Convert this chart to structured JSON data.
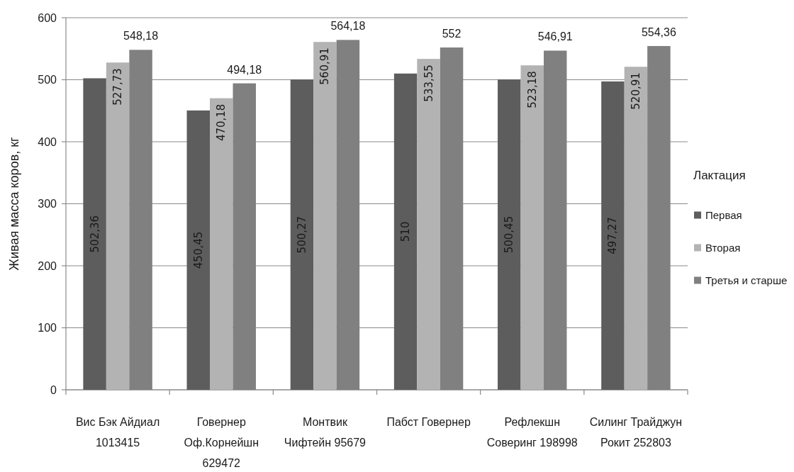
{
  "chart_data": {
    "type": "bar",
    "ylabel": "Живая масса коров, кг",
    "legend_title": "Лактация",
    "categories": [
      "Вис Бэк Айдиал 1013415",
      "Говернер Оф.Корнейшн 629472",
      "Монтвик Чифтейн 95679",
      "Пабст Говернер",
      "Рефлекшн Соверинг 198998",
      "Силинг Трайджун Рокит 252803"
    ],
    "series": [
      {
        "name": "Первая",
        "color": "#5d5d5d",
        "values": [
          502.36,
          450.45,
          500.27,
          510,
          500.45,
          497.27
        ],
        "value_labels": [
          "502,36",
          "450,45",
          "500,27",
          "510",
          "500,45",
          "497,27"
        ]
      },
      {
        "name": "Вторая",
        "color": "#b3b3b3",
        "values": [
          527.73,
          470.18,
          560.91,
          533.55,
          523.18,
          520.91
        ],
        "value_labels": [
          "527,73",
          "470,18",
          "560,91",
          "533,55",
          "523,18",
          "520,91"
        ]
      },
      {
        "name": "Третья и старше",
        "color": "#808080",
        "values": [
          548.18,
          494.18,
          564.18,
          552,
          546.91,
          554.36
        ],
        "value_labels": [
          "548,18",
          "494,18",
          "564,18",
          "552",
          "546,91",
          "554,36"
        ]
      }
    ],
    "ylim": [
      0,
      600
    ],
    "yticks": [
      0,
      100,
      200,
      300,
      400,
      500,
      600
    ],
    "grid": "y",
    "legend": "right"
  }
}
